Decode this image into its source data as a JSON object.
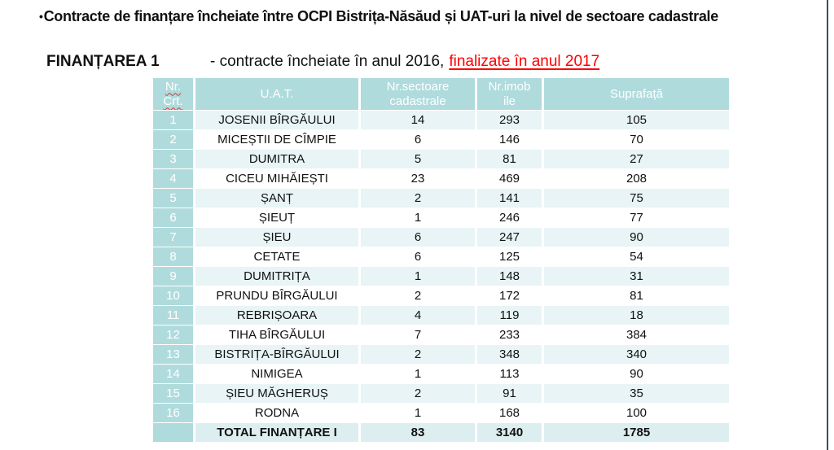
{
  "slide": {
    "bullet": "•",
    "title": "Contracte de finanțare încheiate între OCPI Bistrița-Năsăud și UAT-uri la nivel de sectoare cadastrale",
    "subtitle": {
      "label": "FINANȚAREA 1",
      "text": "- contracte încheiate în anul 2016,",
      "highlight": "finalizate în anul 2017"
    }
  },
  "table": {
    "headers": [
      {
        "line1": "Nr.",
        "line2": "Crt."
      },
      {
        "line1": "U.A.T.",
        "line2": ""
      },
      {
        "line1": "Nr.sectoare",
        "line2": "cadastrale"
      },
      {
        "line1": "Nr.imob",
        "line2": "ile"
      },
      {
        "line1": "Suprafață",
        "line2": ""
      }
    ],
    "rows": [
      {
        "nr": "1",
        "uat": "JOSENII BÎRGĂULUI",
        "sectoare": "14",
        "imobile": "293",
        "suprafata": "105"
      },
      {
        "nr": "2",
        "uat": "MICEȘTII DE CÎMPIE",
        "sectoare": "6",
        "imobile": "146",
        "suprafata": "70"
      },
      {
        "nr": "3",
        "uat": "DUMITRA",
        "sectoare": "5",
        "imobile": "81",
        "suprafata": "27"
      },
      {
        "nr": "4",
        "uat": "CICEU MIHĂIEȘTI",
        "sectoare": "23",
        "imobile": "469",
        "suprafata": "208"
      },
      {
        "nr": "5",
        "uat": "ȘANȚ",
        "sectoare": "2",
        "imobile": "141",
        "suprafata": "75"
      },
      {
        "nr": "6",
        "uat": "ȘIEUȚ",
        "sectoare": "1",
        "imobile": "246",
        "suprafata": "77"
      },
      {
        "nr": "7",
        "uat": "ȘIEU",
        "sectoare": "6",
        "imobile": "247",
        "suprafata": "90"
      },
      {
        "nr": "8",
        "uat": "CETATE",
        "sectoare": "6",
        "imobile": "125",
        "suprafata": "54"
      },
      {
        "nr": "9",
        "uat": "DUMITRIȚA",
        "sectoare": "1",
        "imobile": "148",
        "suprafata": "31"
      },
      {
        "nr": "10",
        "uat": "PRUNDU BÎRGĂULUI",
        "sectoare": "2",
        "imobile": "172",
        "suprafata": "81"
      },
      {
        "nr": "11",
        "uat": "REBRIȘOARA",
        "sectoare": "4",
        "imobile": "119",
        "suprafata": "18"
      },
      {
        "nr": "12",
        "uat": "TIHA BÎRGĂULUI",
        "sectoare": "7",
        "imobile": "233",
        "suprafata": "384"
      },
      {
        "nr": "13",
        "uat": "BISTRIȚA-BÎRGĂULUI",
        "sectoare": "2",
        "imobile": "348",
        "suprafata": "340"
      },
      {
        "nr": "14",
        "uat": "NIMIGEA",
        "sectoare": "1",
        "imobile": "113",
        "suprafata": "90"
      },
      {
        "nr": "15",
        "uat": "ȘIEU MĂGHERUȘ",
        "sectoare": "2",
        "imobile": "91",
        "suprafata": "35"
      },
      {
        "nr": "16",
        "uat": "RODNA",
        "sectoare": "1",
        "imobile": "168",
        "suprafata": "100"
      }
    ],
    "total": {
      "nr": "",
      "label": "TOTAL FINANȚARE I",
      "sectoare": "83",
      "imobile": "3140",
      "suprafata": "1785"
    }
  },
  "colors": {
    "header_bg": "#b0dbdd",
    "row_alt_bg": "#e8f4f5",
    "total_bg": "#ddeef0",
    "accent_red": "#ff0000",
    "squiggle_red": "#cc3b30",
    "border_blue": "#33506b"
  }
}
